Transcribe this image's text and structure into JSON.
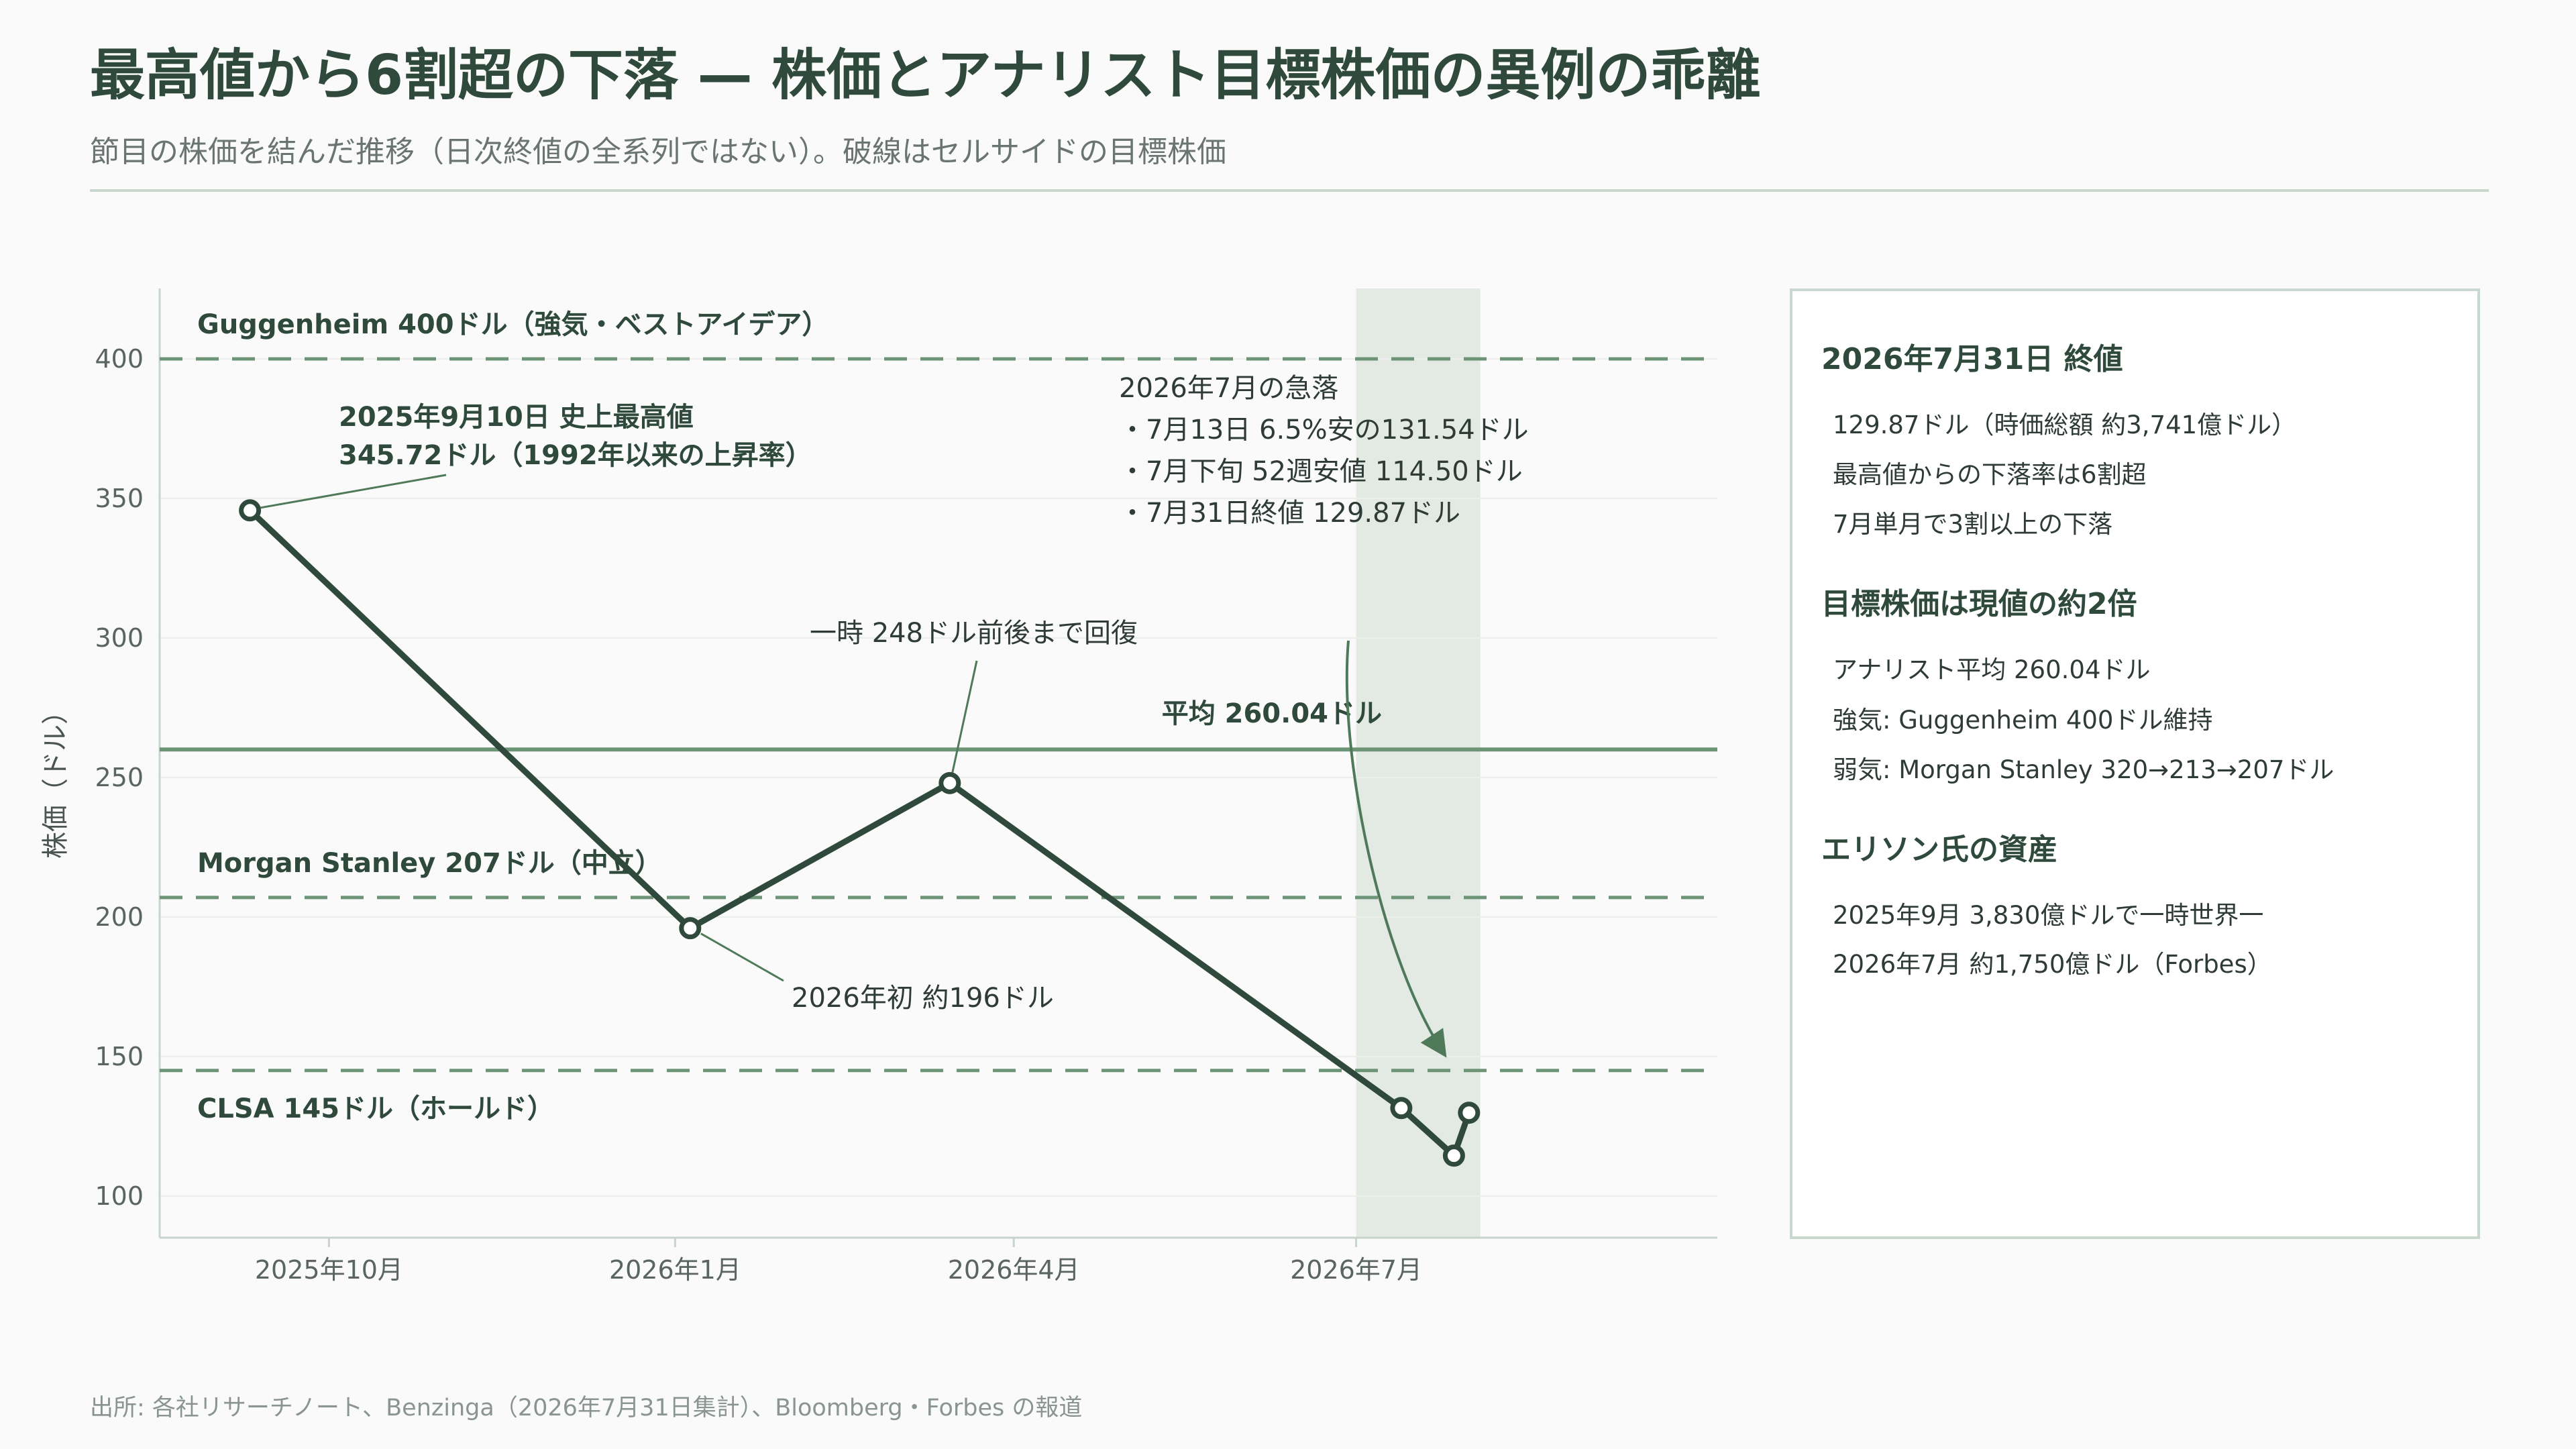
{
  "header": {
    "title": "最高値から6割超の下落 — 株価とアナリスト目標株価の異例の乖離",
    "subtitle": "節目の株価を結んだ推移（日次終値の全系列ではない）。破線はセルサイドの目標株価"
  },
  "chart_data": {
    "type": "line",
    "ylabel": "株価（ドル）",
    "ylim": [
      85,
      425
    ],
    "y_ticks": [
      100,
      150,
      200,
      250,
      300,
      350,
      400
    ],
    "x_range": [
      "2025-08-17",
      "2026-10-05"
    ],
    "x_ticks": [
      {
        "date": "2025-10-01",
        "label": "2025年10月"
      },
      {
        "date": "2026-01-01",
        "label": "2026年1月"
      },
      {
        "date": "2026-04-01",
        "label": "2026年4月"
      },
      {
        "date": "2026-07-01",
        "label": "2026年7月"
      }
    ],
    "series": [
      {
        "points": [
          {
            "x": "2025-09-10",
            "y": 345.72
          },
          {
            "x": "2026-01-05",
            "y": 196
          },
          {
            "x": "2026-03-15",
            "y": 248
          },
          {
            "x": "2026-07-13",
            "y": 131.54
          },
          {
            "x": "2026-07-27",
            "y": 114.5
          },
          {
            "x": "2026-07-31",
            "y": 129.87
          }
        ]
      }
    ],
    "reference_lines": [
      {
        "value": 400,
        "label": "Guggenheim 400ドル（強気・ベストアイデア）",
        "style": "dashed"
      },
      {
        "value": 260.04,
        "label": "平均 260.04ドル",
        "style": "solid"
      },
      {
        "value": 207,
        "label": "Morgan Stanley 207ドル（中立）",
        "style": "dashed"
      },
      {
        "value": 145,
        "label": "CLSA 145ドル（ホールド）",
        "style": "dashed"
      }
    ],
    "highlight_band": {
      "start": "2026-07-01",
      "end": "2026-08-03"
    },
    "annotations": {
      "peak": [
        "2025年9月10日 史上最高値",
        "345.72ドル（1992年以来の上昇率）"
      ],
      "early2026": "2026年初 約196ドル",
      "rebound": "一時 248ドル前後まで回復",
      "july": [
        "2026年7月の急落",
        "・7月13日  6.5%安の131.54ドル",
        "・7月下旬  52週安値 114.50ドル",
        "・7月31日終値 129.87ドル"
      ]
    },
    "colors": {
      "line": "#2f4a3d",
      "reference": "#6e9478",
      "band": "#e2eae3",
      "axis": "#c9d3cd",
      "arrow": "#4f7a5a"
    }
  },
  "panel": {
    "sections": [
      {
        "heading": "2026年7月31日 終値",
        "lines": [
          "129.87ドル（時価総額 約3,741億ドル）",
          "最高値からの下落率は6割超",
          "7月単月で3割以上の下落"
        ]
      },
      {
        "heading": "目標株価は現値の約2倍",
        "lines": [
          "アナリスト平均 260.04ドル",
          "強気: Guggenheim 400ドル維持",
          "弱気: Morgan Stanley 320→213→207ドル"
        ]
      },
      {
        "heading": "エリソン氏の資産",
        "lines": [
          "2025年9月 3,830億ドルで一時世界一",
          "2026年7月 約1,750億ドル（Forbes）"
        ]
      }
    ]
  },
  "footer": {
    "source": "出所: 各社リサーチノート、Benzinga（2026年7月31日集計）、Bloomberg・Forbes の報道"
  }
}
